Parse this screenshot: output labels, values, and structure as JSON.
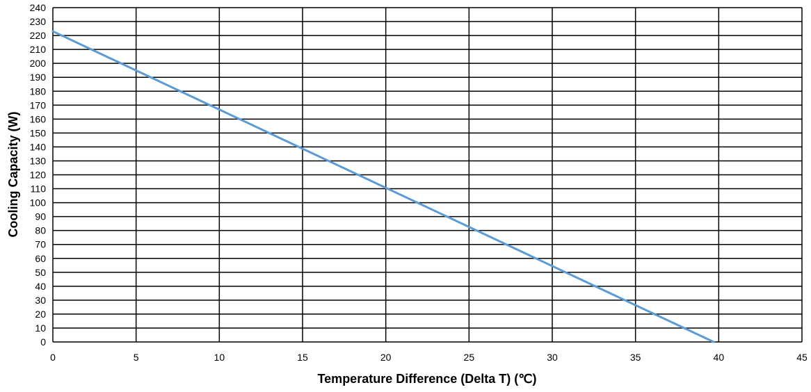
{
  "chart_data": {
    "type": "line",
    "title": "",
    "xlabel": "Temperature Difference (Delta T) (℃)",
    "ylabel": "Cooling Capacity (W)",
    "xlim": [
      0,
      45
    ],
    "ylim": [
      0,
      240
    ],
    "xticks": [
      0,
      5,
      10,
      15,
      20,
      25,
      30,
      35,
      40,
      45
    ],
    "yticks": [
      0,
      10,
      20,
      30,
      40,
      50,
      60,
      70,
      80,
      90,
      100,
      110,
      120,
      130,
      140,
      150,
      160,
      170,
      180,
      190,
      200,
      210,
      220,
      230,
      240
    ],
    "grid": true,
    "legend": "none",
    "series": [
      {
        "color": "#5b9bd5",
        "x": [
          0,
          39.7
        ],
        "y": [
          223,
          0
        ]
      }
    ]
  }
}
